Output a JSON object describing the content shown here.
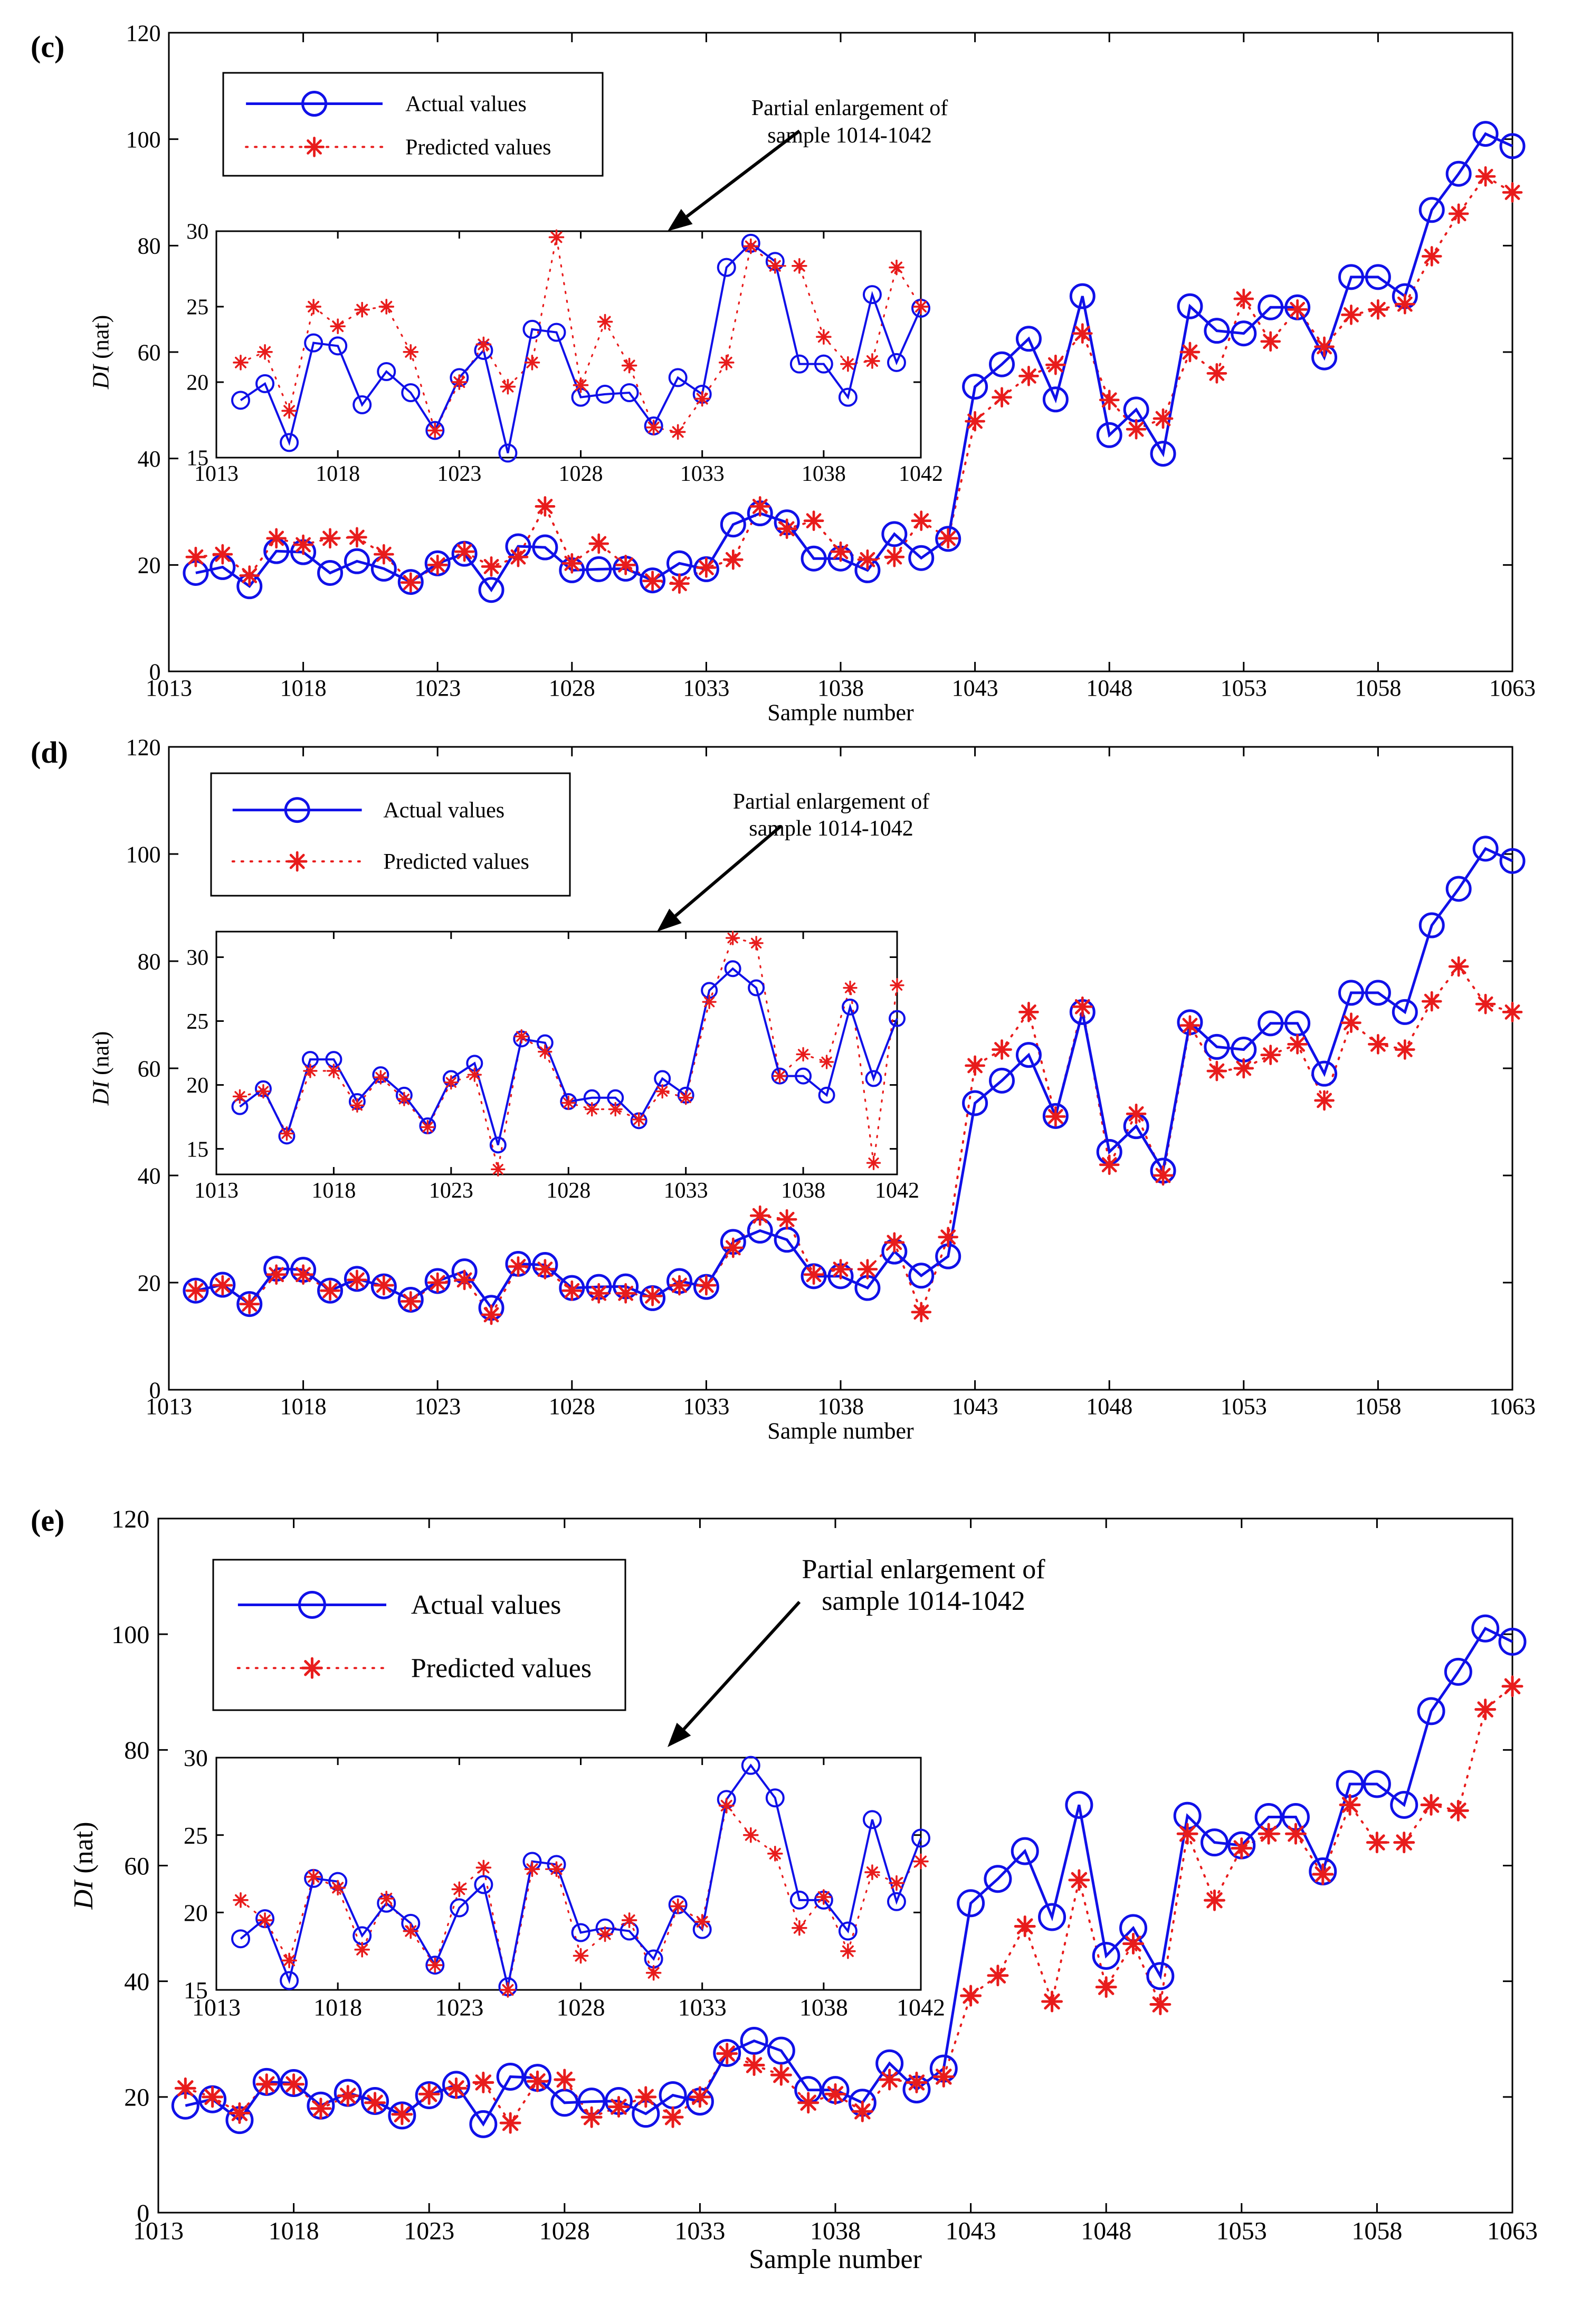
{
  "chart_data": [
    {
      "type": "line",
      "panel_label": "(c)",
      "xlabel": "Sample number",
      "ylabel": "DI (nat)",
      "ylabel_italic": "DI",
      "ylabel_rest": " (nat)",
      "xlim": [
        1013,
        1063
      ],
      "ylim": [
        0,
        120
      ],
      "xticks": [
        1013,
        1018,
        1023,
        1028,
        1033,
        1038,
        1043,
        1048,
        1053,
        1058,
        1063
      ],
      "yticks": [
        0,
        20,
        40,
        60,
        80,
        100,
        120
      ],
      "legend": {
        "actual": "Actual values",
        "predicted": "Predicted values",
        "placement": "top-left"
      },
      "annotation": "Partial enlargement of sample 1014-1042",
      "annotation_lines": [
        "Partial enlargement of",
        "sample 1014-1042"
      ],
      "x_start": 1014,
      "series": [
        {
          "name": "Actual values",
          "color": "#1010e8",
          "values": [
            18.5,
            19.6,
            16,
            22.6,
            22.4,
            18.5,
            20.7,
            19.3,
            16.8,
            20.3,
            22.1,
            15.3,
            23.5,
            23.3,
            19,
            19.2,
            19.3,
            17.1,
            20.3,
            19.2,
            27.6,
            29.7,
            28,
            21.2,
            21.2,
            19,
            25.8,
            21.3,
            24.9,
            53.5,
            57.7,
            62.5,
            51.1,
            70.5,
            44.4,
            49.2,
            40.9,
            68.6,
            64,
            63.5,
            68.4,
            68.4,
            59,
            74.1,
            74.1,
            70.5,
            86.7,
            93.5,
            101,
            98.7
          ]
        },
        {
          "name": "Predicted values",
          "color": "#e81c1c",
          "values": [
            21.5,
            22,
            18,
            25,
            23.8,
            25,
            25.2,
            22,
            16.7,
            20,
            22.5,
            19.7,
            21.5,
            31,
            20.3,
            24,
            20,
            17,
            16.5,
            19.5,
            21,
            31,
            26.8,
            28.3,
            22.5,
            21,
            21.5,
            28.3,
            25,
            47,
            51.5,
            55.5,
            57.6,
            63.5,
            51,
            45.5,
            47.5,
            60,
            56,
            70,
            62,
            68,
            61,
            67,
            68,
            69,
            78,
            86,
            93,
            90
          ]
        }
      ],
      "inset": {
        "xlim": [
          1013,
          1042
        ],
        "ylim": [
          15,
          30
        ],
        "xticks": [
          1013,
          1018,
          1023,
          1028,
          1033,
          1038,
          1042
        ],
        "yticks": [
          15,
          20,
          25,
          30
        ],
        "x_start": 1014,
        "actual": [
          18.8,
          19.9,
          16,
          22.6,
          22.4,
          18.5,
          20.7,
          19.3,
          16.8,
          20.3,
          22.1,
          15.3,
          23.5,
          23.3,
          19,
          19.2,
          19.3,
          17.1,
          20.3,
          19.2,
          27.6,
          29.2,
          28,
          21.2,
          21.2,
          19,
          25.8,
          21.3,
          24.9
        ],
        "predicted": [
          21.3,
          22,
          18.1,
          25,
          23.7,
          24.8,
          25,
          22,
          16.8,
          20,
          22.5,
          19.7,
          21.3,
          29.6,
          19.8,
          24,
          21.1,
          17,
          16.7,
          18.9,
          21.3,
          29,
          27.7,
          27.7,
          23,
          21.2,
          21.4,
          27.6,
          25
        ]
      }
    },
    {
      "type": "line",
      "panel_label": "(d)",
      "xlabel": "Sample number",
      "ylabel": "DI (nat)",
      "ylabel_italic": "DI",
      "ylabel_rest": " (nat)",
      "xlim": [
        1013,
        1063
      ],
      "ylim": [
        0,
        120
      ],
      "xticks": [
        1013,
        1018,
        1023,
        1028,
        1033,
        1038,
        1043,
        1048,
        1053,
        1058,
        1063
      ],
      "yticks": [
        0,
        20,
        40,
        60,
        80,
        100,
        120
      ],
      "legend": {
        "actual": "Actual values",
        "predicted": "Predicted values",
        "placement": "top-left"
      },
      "annotation": "Partial enlargement of sample 1014-1042",
      "annotation_lines": [
        "Partial enlargement of",
        "sample 1014-1042"
      ],
      "x_start": 1014,
      "series": [
        {
          "name": "Actual values",
          "color": "#1010e8",
          "values": [
            18.5,
            19.6,
            16,
            22.6,
            22.4,
            18.5,
            20.7,
            19.3,
            16.8,
            20.3,
            22.1,
            15.3,
            23.5,
            23.3,
            19,
            19.2,
            19.3,
            17.1,
            20.3,
            19.2,
            27.6,
            29.7,
            28,
            21.2,
            21.2,
            19,
            25.8,
            21.3,
            24.9,
            53.5,
            57.7,
            62.5,
            51.1,
            70.5,
            44.4,
            49.2,
            40.9,
            68.6,
            64,
            63.5,
            68.4,
            68.4,
            59,
            74.1,
            74.1,
            70.5,
            86.7,
            93.5,
            101,
            98.7
          ]
        },
        {
          "name": "Predicted values",
          "color": "#e81c1c",
          "values": [
            18.5,
            19.5,
            16,
            21.5,
            21.5,
            18.5,
            20.5,
            19.5,
            16.5,
            20,
            20.5,
            14,
            23,
            22.5,
            18.5,
            18,
            18,
            17.5,
            19.5,
            19.5,
            26.5,
            32.5,
            31.8,
            21.5,
            22.5,
            22.5,
            27.5,
            14.5,
            28.5,
            60.5,
            63.5,
            70.5,
            51,
            71.5,
            42,
            51.5,
            40,
            68,
            59.5,
            60,
            62.5,
            64.5,
            54,
            68.5,
            64.5,
            63.5,
            72.5,
            79,
            72,
            70.5
          ]
        }
      ],
      "inset": {
        "xlim": [
          1013,
          1042
        ],
        "ylim": [
          13,
          32
        ],
        "xticks": [
          1013,
          1018,
          1023,
          1028,
          1033,
          1038,
          1042
        ],
        "yticks": [
          15,
          20,
          25,
          30
        ],
        "x_start": 1014,
        "actual": [
          18.3,
          19.7,
          16,
          22,
          22,
          18.7,
          20.8,
          19.2,
          16.8,
          20.5,
          21.7,
          15.3,
          23.6,
          23.3,
          18.7,
          19,
          19,
          17.2,
          20.5,
          19.2,
          27.4,
          29.1,
          27.6,
          20.7,
          20.7,
          19.2,
          26.1,
          20.5,
          25.2
        ],
        "predicted": [
          19.1,
          19.5,
          16.2,
          21.1,
          21.1,
          18.4,
          20.6,
          18.9,
          16.7,
          20.2,
          20.8,
          13.4,
          23.8,
          22.6,
          18.6,
          18.1,
          18.1,
          17.3,
          19.5,
          19,
          26.5,
          31.5,
          31.1,
          20.7,
          22.4,
          21.8,
          27.6,
          13.9,
          27.8
        ]
      }
    },
    {
      "type": "line",
      "panel_label": "(e)",
      "xlabel": "Sample number",
      "ylabel": "DI (nat)",
      "ylabel_italic": "DI",
      "ylabel_rest": " (nat)",
      "xlim": [
        1013,
        1063
      ],
      "ylim": [
        0,
        120
      ],
      "xticks": [
        1013,
        1018,
        1023,
        1028,
        1033,
        1038,
        1043,
        1048,
        1053,
        1058,
        1063
      ],
      "yticks": [
        0,
        20,
        40,
        60,
        80,
        100,
        120
      ],
      "legend": {
        "actual": "Actual values",
        "predicted": "Predicted values",
        "placement": "top-left"
      },
      "annotation": "Partial enlargement of sample 1014-1042",
      "annotation_lines": [
        "Partial enlargement of",
        "sample 1014-1042"
      ],
      "x_start": 1014,
      "series": [
        {
          "name": "Actual values",
          "color": "#1010e8",
          "values": [
            18.5,
            19.6,
            16,
            22.6,
            22.4,
            18.5,
            20.7,
            19.3,
            16.8,
            20.3,
            22.1,
            15.3,
            23.5,
            23.3,
            19,
            19.2,
            19.3,
            17.1,
            20.3,
            19.2,
            27.6,
            29.7,
            28,
            21.2,
            21.2,
            19,
            25.8,
            21.3,
            24.9,
            53.5,
            57.7,
            62.5,
            51.1,
            70.5,
            44.4,
            49.2,
            40.9,
            68.6,
            64,
            63.5,
            68.4,
            68.4,
            59,
            74.1,
            74.1,
            70.5,
            86.7,
            93.5,
            101,
            98.7
          ]
        },
        {
          "name": "Predicted values",
          "color": "#e81c1c",
          "values": [
            21.5,
            20,
            17.2,
            22.2,
            22.2,
            18,
            20.2,
            19,
            17,
            20.5,
            21.5,
            22.5,
            15.5,
            22.7,
            23,
            16.5,
            18.3,
            20,
            16.5,
            20,
            27.5,
            25.5,
            23.8,
            19,
            20.5,
            17.5,
            23,
            22.5,
            23.5,
            37.5,
            41,
            49.5,
            36.5,
            57.5,
            39,
            46.5,
            36,
            65.5,
            54,
            63,
            65.5,
            65.5,
            58.5,
            70.5,
            64,
            64,
            70.5,
            69.5,
            87,
            91
          ]
        }
      ],
      "inset": {
        "xlim": [
          1013,
          1042
        ],
        "ylim": [
          15,
          30
        ],
        "xticks": [
          1013,
          1018,
          1023,
          1028,
          1033,
          1038,
          1042
        ],
        "yticks": [
          15,
          20,
          25,
          30
        ],
        "x_start": 1014,
        "actual": [
          18.3,
          19.6,
          15.6,
          22.2,
          22,
          18.5,
          20.6,
          19.3,
          16.6,
          20.3,
          21.8,
          15.2,
          23.3,
          23.1,
          18.7,
          19,
          18.8,
          17,
          20.5,
          18.9,
          27.3,
          29.5,
          27.4,
          20.8,
          20.8,
          18.8,
          26,
          20.7,
          24.8
        ],
        "predicted": [
          20.8,
          19.5,
          16.9,
          22.3,
          21.6,
          17.6,
          20.9,
          18.8,
          16.6,
          21.5,
          22.9,
          15,
          22.8,
          22.8,
          17.2,
          18.6,
          19.5,
          16.1,
          20.4,
          19.4,
          26.9,
          25,
          23.8,
          19,
          21,
          17.5,
          22.6,
          21.9,
          23.3
        ]
      }
    }
  ]
}
